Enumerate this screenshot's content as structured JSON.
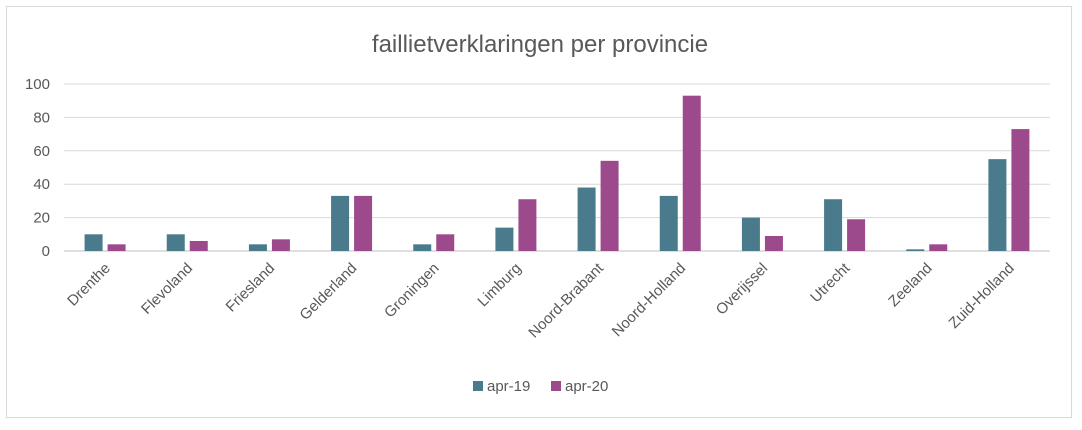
{
  "chart_data": {
    "type": "bar",
    "title": "faillietverklaringen per provincie",
    "xlabel": "",
    "ylabel": "",
    "categories": [
      "Drenthe",
      "Flevoland",
      "Friesland",
      "Gelderland",
      "Groningen",
      "Limburg",
      "Noord-Brabant",
      "Noord-Holland",
      "Overijssel",
      "Utrecht",
      "Zeeland",
      "Zuid-Holland"
    ],
    "series": [
      {
        "name": "apr-19",
        "color": "#4a7b8c",
        "values": [
          10,
          10,
          4,
          33,
          4,
          14,
          38,
          33,
          20,
          31,
          1,
          55
        ]
      },
      {
        "name": "apr-20",
        "color": "#9c4a8c",
        "values": [
          4,
          6,
          7,
          33,
          10,
          31,
          54,
          93,
          9,
          19,
          4,
          73
        ]
      }
    ],
    "ylim": [
      0,
      100
    ],
    "yticks": [
      "0",
      "20",
      "40",
      "60",
      "80",
      "100"
    ],
    "grid": true,
    "legend_position": "bottom"
  }
}
